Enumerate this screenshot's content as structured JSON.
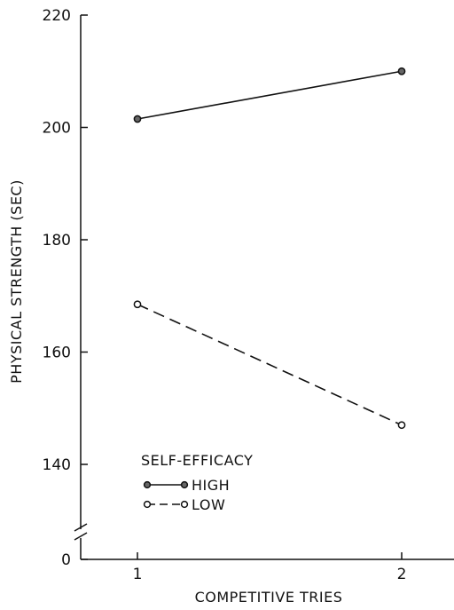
{
  "chart_data": {
    "type": "line",
    "title": "",
    "xlabel": "COMPETITIVE TRIES",
    "ylabel": "PHYSICAL STRENGTH (SEC)",
    "x": [
      1,
      2
    ],
    "x_tick_labels": [
      "1",
      "2"
    ],
    "y_tick_labels": [
      "220",
      "200",
      "180",
      "160",
      "140",
      "0"
    ],
    "y_ticks": [
      220,
      200,
      180,
      160,
      140
    ],
    "y_zero_label": "0",
    "ylim": [
      130,
      220
    ],
    "y_axis_break": true,
    "grid": false,
    "legend_title": "SELF-EFFICACY",
    "legend_position": "bottom-left",
    "series": [
      {
        "name": "HIGH",
        "values": [
          201.5,
          210
        ],
        "line_style": "solid",
        "marker": "filled-circle",
        "color": "#111111"
      },
      {
        "name": "LOW",
        "values": [
          168.5,
          147
        ],
        "line_style": "dashed",
        "marker": "open-circle",
        "color": "#111111"
      }
    ]
  }
}
